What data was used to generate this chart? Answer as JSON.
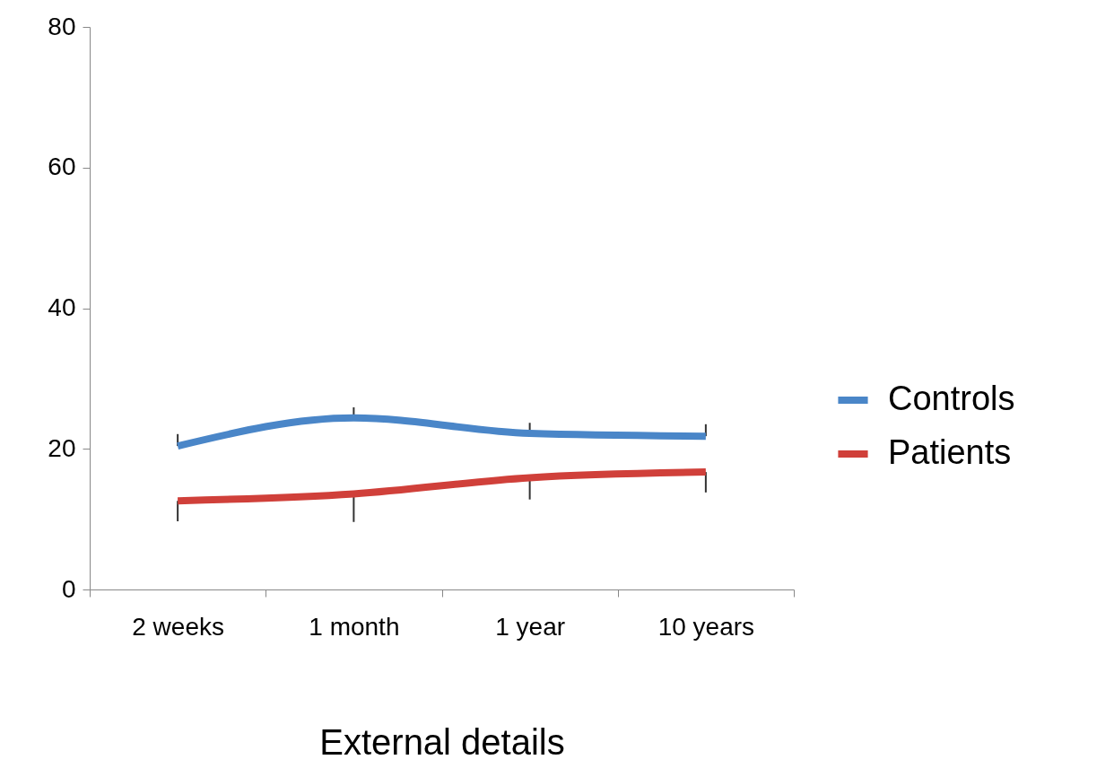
{
  "chart_data": {
    "type": "line",
    "xlabel": "External details",
    "categories": [
      "2 weeks",
      "1 month",
      "1 year",
      "10 years"
    ],
    "series": [
      {
        "name": "Controls",
        "color": "#4a86c8",
        "values": [
          20.4,
          24.4,
          22.2,
          21.8
        ],
        "errors": [
          [
            20.4,
            22.1
          ],
          [
            24.4,
            25.9
          ],
          [
            22.2,
            23.7
          ],
          [
            21.8,
            23.5
          ]
        ]
      },
      {
        "name": "Patients",
        "color": "#d0403a",
        "values": [
          12.6,
          13.6,
          15.9,
          16.7
        ],
        "errors": [
          [
            9.7,
            12.6
          ],
          [
            9.6,
            13.6
          ],
          [
            12.8,
            15.9
          ],
          [
            13.8,
            16.7
          ]
        ]
      }
    ],
    "ylim": [
      0,
      80
    ],
    "yticks": [
      0,
      20,
      40,
      60,
      80
    ],
    "legend": "right"
  }
}
